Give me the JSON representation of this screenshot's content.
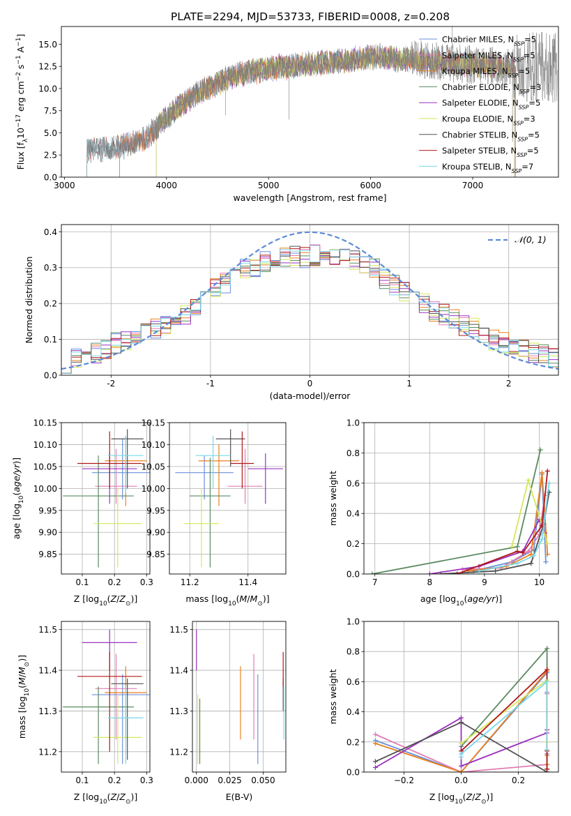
{
  "figure_title": "PLATE=2294, MJD=53733, FIBERID=0008, z=0.208",
  "model_colors": {
    "Chabrier MILES": "#6a8fdc",
    "Salpeter MILES": "#e07db4",
    "Kroupa MILES": "#e8801f",
    "Chabrier ELODIE": "#5a8a60",
    "Salpeter ELODIE": "#9b30c0",
    "Kroupa ELODIE": "#d4e85a",
    "Chabrier STELIB": "#505050",
    "Salpeter STELIB": "#b01818",
    "Kroupa STELIB": "#78d8e8"
  },
  "chart_data": [
    {
      "id": "spectrum",
      "type": "line",
      "title": "PLATE=2294, MJD=53733, FIBERID=0008, z=0.208",
      "xlabel": "wavelength [Angstrom, rest frame]",
      "ylabel": "Flux [f_λ 10^-17 erg cm^-2 s^-1 A^-1]",
      "xlim": [
        2970,
        7840
      ],
      "ylim": [
        0,
        17
      ],
      "xticks": [
        3000,
        4000,
        5000,
        6000,
        7000
      ],
      "yticks": [
        0.0,
        2.5,
        5.0,
        7.5,
        10.0,
        12.5,
        15.0
      ],
      "legend": "right",
      "legend_entries": [
        {
          "model": "Chabrier MILES",
          "label": "Chabrier MILES, N",
          "sub": "SSP",
          "suffix": "=5"
        },
        {
          "model": "Salpeter MILES",
          "label": "Salpeter MILES, N",
          "sub": "SSP",
          "suffix": "=5"
        },
        {
          "model": "Kroupa MILES",
          "label": "Kroupa MILES, N",
          "sub": "SSP",
          "suffix": "=5"
        },
        {
          "model": "Chabrier ELODIE",
          "label": "Chabrier ELODIE, N",
          "sub": "SSP",
          "suffix": "=3"
        },
        {
          "model": "Salpeter ELODIE",
          "label": "Salpeter ELODIE, N",
          "sub": "SSP",
          "suffix": "=5"
        },
        {
          "model": "Kroupa ELODIE",
          "label": "Kroupa ELODIE, N",
          "sub": "SSP",
          "suffix": "=3"
        },
        {
          "model": "Chabrier STELIB",
          "label": "Chabrier STELIB, N",
          "sub": "SSP",
          "suffix": "=5"
        },
        {
          "model": "Salpeter STELIB",
          "label": "Salpeter STELIB, N",
          "sub": "SSP",
          "suffix": "=5"
        },
        {
          "model": "Kroupa STELIB",
          "label": "Kroupa STELIB, N",
          "sub": "SSP",
          "suffix": "=7"
        }
      ],
      "coverage_start": {
        "STELIB": 3220,
        "MILES": 3540,
        "ELODIE": 3900
      },
      "coverage_end": 7410,
      "continuum_x": [
        3220,
        3400,
        3600,
        3800,
        3950,
        4100,
        4300,
        4500,
        4700,
        4900,
        5100,
        5300,
        5500,
        5700,
        5900,
        6100,
        6300,
        6500,
        6700,
        6900,
        7100,
        7300,
        7400
      ],
      "continuum_y": [
        2.9,
        3.2,
        3.6,
        4.4,
        6.1,
        7.8,
        9.4,
        10.6,
        11.6,
        12.0,
        12.4,
        12.6,
        12.9,
        13.0,
        13.5,
        13.6,
        13.3,
        13.2,
        13.0,
        12.8,
        12.6,
        12.5,
        12.4
      ]
    },
    {
      "id": "residuals",
      "type": "histogram",
      "xlabel": "(data-model)/error",
      "ylabel": "Normed distribution",
      "xlim": [
        -2.5,
        2.5
      ],
      "ylim": [
        0,
        0.42
      ],
      "xticks": [
        -2,
        -1,
        0,
        1,
        2
      ],
      "yticks": [
        0.0,
        0.1,
        0.2,
        0.3,
        0.4
      ],
      "grid": true,
      "legend": "top-right",
      "reference_curve": {
        "label": "𝒩(0, 1)",
        "color": "#5b8ad8",
        "mean": 0,
        "sigma": 1
      },
      "bin_edges": [
        -2.5,
        -2.4,
        -2.3,
        -2.2,
        -2.1,
        -2.0,
        -1.9,
        -1.8,
        -1.7,
        -1.6,
        -1.5,
        -1.4,
        -1.3,
        -1.2,
        -1.1,
        -1.0,
        -0.9,
        -0.8,
        -0.7,
        -0.6,
        -0.5,
        -0.4,
        -0.3,
        -0.2,
        -0.1,
        0.0,
        0.1,
        0.2,
        0.3,
        0.4,
        0.5,
        0.6,
        0.7,
        0.8,
        0.9,
        1.0,
        1.1,
        1.2,
        1.3,
        1.4,
        1.5,
        1.6,
        1.7,
        1.8,
        1.9,
        2.0,
        2.1,
        2.2,
        2.3,
        2.4,
        2.5
      ],
      "envelope": [
        0.025,
        0.045,
        0.05,
        0.06,
        0.075,
        0.09,
        0.095,
        0.105,
        0.125,
        0.13,
        0.14,
        0.155,
        0.17,
        0.19,
        0.21,
        0.24,
        0.255,
        0.28,
        0.3,
        0.3,
        0.315,
        0.32,
        0.33,
        0.33,
        0.33,
        0.335,
        0.33,
        0.33,
        0.33,
        0.32,
        0.31,
        0.3,
        0.27,
        0.25,
        0.23,
        0.21,
        0.2,
        0.18,
        0.17,
        0.155,
        0.14,
        0.13,
        0.115,
        0.1,
        0.09,
        0.08,
        0.07,
        0.06,
        0.055,
        0.05
      ]
    },
    {
      "id": "age-vs-Z",
      "type": "errorbar",
      "xlabel": "Z [log10(Z/Z⊙)]",
      "ylabel": "age  [log10(age/yr)]",
      "xlim": [
        0.035,
        0.31
      ],
      "ylim": [
        9.805,
        10.15
      ],
      "xticks": [
        0.1,
        0.2,
        0.3
      ],
      "xtick_labels": [
        "0.1",
        "0.2",
        "0.3"
      ],
      "yticks": [
        9.85,
        9.9,
        9.95,
        10.0,
        10.05,
        10.1,
        10.15
      ],
      "ytick_labels": [
        "9.85",
        "9.90",
        "9.95",
        "10.00",
        "10.05",
        "10.10",
        "10.15"
      ],
      "grid": true,
      "points": [
        {
          "model": "Chabrier MILES",
          "x": 0.225,
          "xerr": 0.095,
          "y": 10.036,
          "ylo": 9.975,
          "yhi": 10.113
        },
        {
          "model": "Salpeter MILES",
          "x": 0.205,
          "xerr": 0.065,
          "y": 10.005,
          "ylo": 9.965,
          "yhi": 10.09
        },
        {
          "model": "Kroupa MILES",
          "x": 0.235,
          "xerr": 0.065,
          "y": 10.063,
          "ylo": 9.96,
          "yhi": 10.12
        },
        {
          "model": "Chabrier ELODIE",
          "x": 0.15,
          "xerr": 0.11,
          "y": 9.983,
          "ylo": 9.82,
          "yhi": 10.075
        },
        {
          "model": "Salpeter ELODIE",
          "x": 0.185,
          "xerr": 0.085,
          "y": 10.045,
          "ylo": 9.965,
          "yhi": 10.08
        },
        {
          "model": "Kroupa ELODIE",
          "x": 0.21,
          "xerr": 0.075,
          "y": 9.92,
          "ylo": 9.82,
          "yhi": 10.0
        },
        {
          "model": "Chabrier STELIB",
          "x": 0.24,
          "xerr": 0.05,
          "y": 10.113,
          "ylo": 10.0,
          "yhi": 10.135
        },
        {
          "model": "Salpeter STELIB",
          "x": 0.185,
          "xerr": 0.1,
          "y": 10.057,
          "ylo": 10.0,
          "yhi": 10.13
        },
        {
          "model": "Kroupa STELIB",
          "x": 0.235,
          "xerr": 0.055,
          "y": 10.075,
          "ylo": 9.99,
          "yhi": 10.12
        }
      ]
    },
    {
      "id": "age-vs-mass",
      "type": "errorbar",
      "xlabel": "mass [log10(M/M⊙)]",
      "ylabel": "",
      "xlim": [
        11.13,
        11.53
      ],
      "ylim": [
        9.805,
        10.15
      ],
      "xticks": [
        11.2,
        11.4
      ],
      "xtick_labels": [
        "11.2",
        "11.4"
      ],
      "yticks": [
        9.85,
        9.9,
        9.95,
        10.0,
        10.05,
        10.1,
        10.15
      ],
      "ytick_labels": [
        "9.85",
        "9.90",
        "9.95",
        "10.00",
        "10.05",
        "10.10",
        "10.15"
      ],
      "grid": true,
      "points": [
        {
          "model": "Chabrier MILES",
          "x": 11.25,
          "xerr": 0.1,
          "y": 10.036,
          "ylo": 9.975,
          "yhi": 10.075
        },
        {
          "model": "Salpeter MILES",
          "x": 11.39,
          "xerr": 0.06,
          "y": 10.005,
          "ylo": 9.965,
          "yhi": 10.09
        },
        {
          "model": "Kroupa MILES",
          "x": 11.3,
          "xerr": 0.07,
          "y": 10.063,
          "ylo": 9.96,
          "yhi": 10.1
        },
        {
          "model": "Chabrier ELODIE",
          "x": 11.27,
          "xerr": 0.07,
          "y": 9.983,
          "ylo": 9.82,
          "yhi": 10.07
        },
        {
          "model": "Salpeter ELODIE",
          "x": 11.46,
          "xerr": 0.06,
          "y": 10.045,
          "ylo": 9.965,
          "yhi": 10.08
        },
        {
          "model": "Kroupa ELODIE",
          "x": 11.24,
          "xerr": 0.06,
          "y": 9.92,
          "ylo": 9.82,
          "yhi": 10.0
        },
        {
          "model": "Chabrier STELIB",
          "x": 11.34,
          "xerr": 0.05,
          "y": 10.113,
          "ylo": 10.05,
          "yhi": 10.135
        },
        {
          "model": "Salpeter STELIB",
          "x": 11.38,
          "xerr": 0.04,
          "y": 10.057,
          "ylo": 10.0,
          "yhi": 10.13
        },
        {
          "model": "Kroupa STELIB",
          "x": 11.28,
          "xerr": 0.06,
          "y": 10.075,
          "ylo": 10.0,
          "yhi": 10.12
        }
      ]
    },
    {
      "id": "weight-vs-age",
      "type": "line",
      "xlabel": "age  [log10(age/yr)]",
      "ylabel": "mass weight",
      "xlim": [
        6.8,
        10.35
      ],
      "ylim": [
        0,
        1
      ],
      "xticks": [
        7,
        8,
        9,
        10
      ],
      "yticks": [
        0.0,
        0.2,
        0.4,
        0.6,
        0.8,
        1.0
      ],
      "grid": true,
      "series": [
        {
          "model": "Chabrier MILES",
          "x": [
            8.8,
            9.5,
            9.9,
            10.05,
            10.12
          ],
          "y": [
            0.02,
            0.08,
            0.16,
            0.66,
            0.08
          ]
        },
        {
          "model": "Salpeter MILES",
          "x": [
            8.6,
            9.3,
            9.8,
            10.0,
            10.1
          ],
          "y": [
            0.03,
            0.04,
            0.15,
            0.26,
            0.52
          ]
        },
        {
          "model": "Kroupa MILES",
          "x": [
            8.7,
            9.4,
            9.85,
            10.05,
            10.15
          ],
          "y": [
            0.02,
            0.05,
            0.13,
            0.67,
            0.13
          ]
        },
        {
          "model": "Chabrier ELODIE",
          "x": [
            6.95,
            9.6,
            10.02
          ],
          "y": [
            0.0,
            0.18,
            0.82
          ]
        },
        {
          "model": "Salpeter ELODIE",
          "x": [
            8.0,
            8.9,
            9.7,
            10.0,
            10.1
          ],
          "y": [
            0.0,
            0.05,
            0.15,
            0.36,
            0.27
          ]
        },
        {
          "model": "Kroupa ELODIE",
          "x": [
            9.5,
            9.8,
            10.15
          ],
          "y": [
            0.18,
            0.62,
            0.2
          ]
        },
        {
          "model": "Chabrier STELIB",
          "x": [
            8.2,
            9.2,
            9.85,
            10.08,
            10.18
          ],
          "y": [
            0.0,
            0.02,
            0.07,
            0.33,
            0.54
          ]
        },
        {
          "model": "Salpeter STELIB",
          "x": [
            8.5,
            9.6,
            9.7,
            10.05,
            10.15
          ],
          "y": [
            0.0,
            0.15,
            0.14,
            0.32,
            0.68
          ]
        },
        {
          "model": "Kroupa STELIB",
          "x": [
            8.9,
            9.6,
            9.9,
            10.05,
            10.18
          ],
          "y": [
            0.02,
            0.07,
            0.12,
            0.23,
            0.6
          ]
        }
      ]
    },
    {
      "id": "mass-vs-Z",
      "type": "errorbar",
      "xlabel": "Z [log10(Z/Z⊙)]",
      "ylabel": "mass [log10(M/M⊙)]",
      "xlim": [
        0.035,
        0.31
      ],
      "ylim": [
        11.15,
        11.52
      ],
      "xticks": [
        0.1,
        0.2,
        0.3
      ],
      "xtick_labels": [
        "0.1",
        "0.2",
        "0.3"
      ],
      "yticks": [
        11.2,
        11.3,
        11.4,
        11.5
      ],
      "ytick_labels": [
        "11.2",
        "11.3",
        "11.4",
        "11.5"
      ],
      "grid": true,
      "points": [
        {
          "model": "Chabrier MILES",
          "x": 0.225,
          "xerr": 0.095,
          "y": 11.34,
          "ylo": 11.17,
          "yhi": 11.39
        },
        {
          "model": "Salpeter MILES",
          "x": 0.205,
          "xerr": 0.065,
          "y": 11.355,
          "ylo": 11.23,
          "yhi": 11.44
        },
        {
          "model": "Kroupa MILES",
          "x": 0.235,
          "xerr": 0.065,
          "y": 11.345,
          "ylo": 11.23,
          "yhi": 11.41
        },
        {
          "model": "Chabrier ELODIE",
          "x": 0.15,
          "xerr": 0.11,
          "y": 11.31,
          "ylo": 11.17,
          "yhi": 11.36
        },
        {
          "model": "Salpeter ELODIE",
          "x": 0.185,
          "xerr": 0.085,
          "y": 11.468,
          "ylo": 11.4,
          "yhi": 11.5
        },
        {
          "model": "Kroupa ELODIE",
          "x": 0.21,
          "xerr": 0.075,
          "y": 11.235,
          "ylo": 11.17,
          "yhi": 11.34
        },
        {
          "model": "Chabrier STELIB",
          "x": 0.24,
          "xerr": 0.05,
          "y": 11.367,
          "ylo": 11.18,
          "yhi": 11.38
        },
        {
          "model": "Salpeter STELIB",
          "x": 0.185,
          "xerr": 0.1,
          "y": 11.385,
          "ylo": 11.2,
          "yhi": 11.445
        },
        {
          "model": "Kroupa STELIB",
          "x": 0.235,
          "xerr": 0.055,
          "y": 11.283,
          "ylo": 11.17,
          "yhi": 11.36
        }
      ]
    },
    {
      "id": "mass-vs-ebv",
      "type": "errorbar",
      "xlabel": "E(B-V)",
      "ylabel": "",
      "xlim": [
        -0.003,
        0.067
      ],
      "ylim": [
        11.15,
        11.52
      ],
      "xticks": [
        0.0,
        0.025,
        0.05
      ],
      "xtick_labels": [
        "0.000",
        "0.025",
        "0.050"
      ],
      "yticks": [
        11.2,
        11.3,
        11.4,
        11.5
      ],
      "ytick_labels": [
        "11.2",
        "11.3",
        "11.4",
        "11.5"
      ],
      "grid": true,
      "points": [
        {
          "model": "Chabrier MILES",
          "x": 0.046,
          "y": 11.34,
          "ylo": 11.17,
          "yhi": 11.39
        },
        {
          "model": "Salpeter MILES",
          "x": 0.043,
          "y": 11.355,
          "ylo": 11.23,
          "yhi": 11.44
        },
        {
          "model": "Kroupa MILES",
          "x": 0.033,
          "y": 11.345,
          "ylo": 11.23,
          "yhi": 11.41
        },
        {
          "model": "Chabrier ELODIE",
          "x": 0.0025,
          "y": 11.31,
          "ylo": 11.17,
          "yhi": 11.33
        },
        {
          "model": "Salpeter ELODIE",
          "x": 0.0,
          "y": 11.468,
          "ylo": 11.4,
          "yhi": 11.5
        },
        {
          "model": "Kroupa ELODIE",
          "x": 0.001,
          "y": 11.235,
          "ylo": 11.17,
          "yhi": 11.34
        },
        {
          "model": "Chabrier STELIB",
          "x": 0.065,
          "y": 11.367,
          "ylo": 11.3,
          "yhi": 11.38
        },
        {
          "model": "Salpeter STELIB",
          "x": 0.065,
          "y": 11.385,
          "ylo": 11.36,
          "yhi": 11.445
        },
        {
          "model": "Kroupa STELIB",
          "x": 0.0655,
          "y": 11.283,
          "ylo": 11.23,
          "yhi": 11.36
        }
      ]
    },
    {
      "id": "weight-vs-Z",
      "type": "line",
      "xlabel": "Z [log10(Z/Z⊙)]",
      "ylabel": "mass weight",
      "xlim": [
        -0.34,
        0.34
      ],
      "ylim": [
        0,
        1
      ],
      "xticks": [
        -0.2,
        0.0,
        0.2
      ],
      "xtick_labels": [
        "−0.2",
        "0.0",
        "0.2"
      ],
      "yticks": [
        0.0,
        0.2,
        0.4,
        0.6,
        0.8,
        1.0
      ],
      "grid": true,
      "series": [
        {
          "model": "Chabrier MILES",
          "x": [
            -0.3,
            0.0,
            0.3,
            0.3,
            0.3
          ],
          "y": [
            0.21,
            0.0,
            0.66,
            0.53,
            0.12
          ]
        },
        {
          "model": "Salpeter MILES",
          "x": [
            -0.3,
            0.0,
            0.3,
            0.3,
            0.3
          ],
          "y": [
            0.25,
            0.0,
            0.05,
            0.52,
            0.02
          ]
        },
        {
          "model": "Kroupa MILES",
          "x": [
            -0.3,
            0.0,
            0.3,
            0.3,
            0.3
          ],
          "y": [
            0.19,
            0.0,
            0.67,
            0.11,
            0.05
          ]
        },
        {
          "model": "Chabrier ELODIE",
          "x": [
            0.0,
            0.3,
            0.3
          ],
          "y": [
            0.17,
            0.82,
            0.02
          ]
        },
        {
          "model": "Salpeter ELODIE",
          "x": [
            -0.3,
            0.0,
            0.0,
            0.3,
            0.3
          ],
          "y": [
            0.03,
            0.36,
            0.04,
            0.26,
            0.28
          ]
        },
        {
          "model": "Kroupa ELODIE",
          "x": [
            0.0,
            0.3,
            0.3
          ],
          "y": [
            0.19,
            0.61,
            0.2
          ]
        },
        {
          "model": "Chabrier STELIB",
          "x": [
            -0.3,
            0.0,
            0.3,
            0.3
          ],
          "y": [
            0.07,
            0.33,
            0.0,
            0.0
          ]
        },
        {
          "model": "Salpeter STELIB",
          "x": [
            0.0,
            0.3,
            0.3,
            0.3
          ],
          "y": [
            0.14,
            0.68,
            0.14,
            0.02
          ]
        },
        {
          "model": "Kroupa STELIB",
          "x": [
            0.0,
            0.0,
            0.3,
            0.3
          ],
          "y": [
            0.1,
            0.12,
            0.6,
            0.15
          ]
        }
      ]
    }
  ]
}
